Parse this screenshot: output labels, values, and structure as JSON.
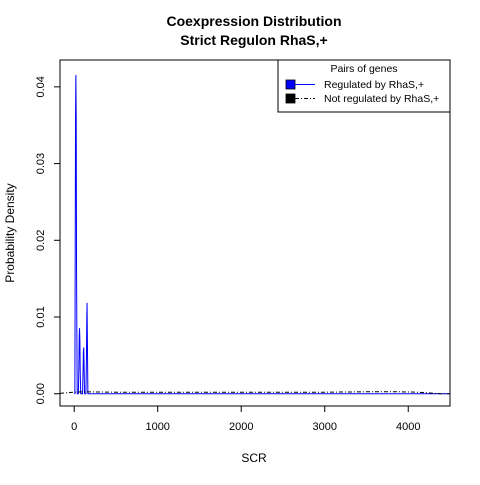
{
  "chart_data": {
    "type": "line",
    "title": "Coexpression Distribution",
    "subtitle": "Strict Regulon RhaS,+",
    "xlabel": "SCR",
    "ylabel": "Probability Density",
    "xlim": [
      -170,
      4500
    ],
    "ylim": [
      -0.0016,
      0.0435
    ],
    "xticks": [
      0,
      1000,
      2000,
      3000,
      4000
    ],
    "yticks": [
      0.0,
      0.01,
      0.02,
      0.03,
      0.04
    ],
    "xtick_labels": [
      "0",
      "1000",
      "2000",
      "3000",
      "4000"
    ],
    "ytick_labels": [
      "0.00",
      "0.01",
      "0.02",
      "0.03",
      "0.04"
    ],
    "grid": false,
    "legend": {
      "title": "Pairs of genes",
      "position": "top-right",
      "entries": [
        "Regulated by  RhaS,+",
        "Not regulated by  RhaS,+"
      ]
    },
    "series": [
      {
        "name": "Regulated by  RhaS,+",
        "color": "#0000ff",
        "line_style": "solid",
        "x": [
          0,
          8,
          12,
          16,
          20,
          24,
          28,
          36,
          50,
          56,
          60,
          64,
          68,
          72,
          78,
          100,
          106,
          110,
          114,
          118,
          124,
          140,
          146,
          150,
          154,
          158,
          164,
          4500
        ],
        "y": [
          0,
          0,
          0.018,
          0.036,
          0.0415,
          0.036,
          0.016,
          0,
          0,
          0.0035,
          0.0075,
          0.0085,
          0.007,
          0.003,
          0,
          0,
          0.003,
          0.0055,
          0.006,
          0.004,
          0,
          0,
          0.004,
          0.009,
          0.0118,
          0.007,
          0,
          0
        ]
      },
      {
        "name": "Not regulated by  RhaS,+",
        "color": "#000000",
        "line_style": "dashed",
        "x": [
          -170,
          0,
          100,
          500,
          1000,
          2000,
          3000,
          3500,
          3900,
          4100,
          4200,
          4300,
          4400,
          4500
        ],
        "y": [
          5e-05,
          0.0002,
          0.00025,
          0.0002,
          0.0002,
          0.0002,
          0.0002,
          0.00025,
          0.00025,
          0.0002,
          0.00015,
          5e-05,
          0.0,
          0.0
        ]
      }
    ]
  }
}
